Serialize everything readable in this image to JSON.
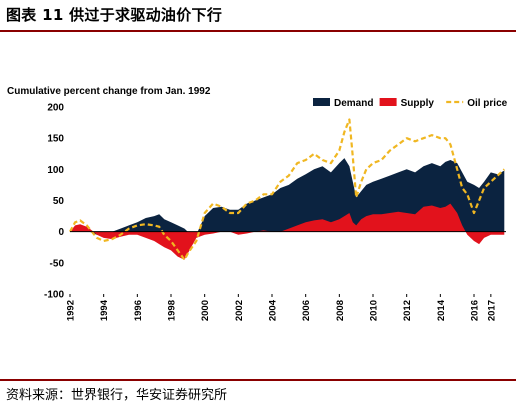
{
  "figure": {
    "title": "图表 11 供过于求驱动油价下行",
    "source": "资料来源：世界银行，华安证券研究所"
  },
  "colors": {
    "demand": "#0b2340",
    "supply": "#e2121c",
    "oil_price": "#f0b722",
    "rule": "#8a0000"
  },
  "chart_data": {
    "type": "area",
    "title": "Cumulative percent change from Jan. 1992",
    "xlabel": "",
    "ylabel": "",
    "xlim": [
      1992,
      2017.9
    ],
    "ylim": [
      -100,
      200
    ],
    "y_ticks": [
      -100,
      -50,
      0,
      50,
      100,
      150,
      200
    ],
    "x_ticks": [
      "1992",
      "1994",
      "1996",
      "1998",
      "2000",
      "2002",
      "2004",
      "2006",
      "2008",
      "2010",
      "2012",
      "2014",
      "2016",
      "2017"
    ],
    "grid": false,
    "legend_position": "top-right",
    "series": [
      {
        "name": "Demand",
        "kind": "area",
        "x": [
          1992.0,
          1992.3,
          1992.6,
          1993.0,
          1993.3,
          1993.6,
          1994.0,
          1994.5,
          1995.0,
          1995.5,
          1996.0,
          1996.5,
          1997.0,
          1997.3,
          1997.6,
          1998.0,
          1998.4,
          1998.8,
          1999.0,
          1999.5,
          2000.0,
          2000.5,
          2001.0,
          2001.5,
          2002.0,
          2002.5,
          2003.0,
          2003.5,
          2004.0,
          2004.5,
          2005.0,
          2005.5,
          2006.0,
          2006.5,
          2007.0,
          2007.5,
          2008.0,
          2008.3,
          2008.6,
          2008.8,
          2009.0,
          2009.3,
          2009.6,
          2010.0,
          2010.5,
          2011.0,
          2011.5,
          2012.0,
          2012.5,
          2013.0,
          2013.5,
          2014.0,
          2014.3,
          2014.6,
          2015.0,
          2015.3,
          2015.6,
          2016.0,
          2016.3,
          2016.6,
          2017.0,
          2017.4,
          2017.8
        ],
        "values": [
          0,
          5,
          8,
          3,
          -2,
          -5,
          -5,
          0,
          5,
          10,
          15,
          22,
          25,
          28,
          20,
          15,
          10,
          5,
          0,
          -5,
          25,
          38,
          40,
          35,
          35,
          45,
          50,
          55,
          60,
          70,
          75,
          85,
          92,
          100,
          105,
          95,
          110,
          118,
          105,
          80,
          55,
          65,
          75,
          80,
          85,
          90,
          95,
          100,
          95,
          105,
          110,
          105,
          112,
          115,
          110,
          95,
          80,
          75,
          70,
          80,
          95,
          92,
          98
        ]
      },
      {
        "name": "Supply",
        "kind": "area",
        "x": [
          1992.0,
          1992.3,
          1992.6,
          1993.0,
          1993.3,
          1993.6,
          1994.0,
          1994.5,
          1995.0,
          1995.5,
          1996.0,
          1996.5,
          1997.0,
          1997.3,
          1997.6,
          1998.0,
          1998.4,
          1998.8,
          1999.0,
          1999.5,
          2000.0,
          2000.5,
          2001.0,
          2001.5,
          2002.0,
          2002.5,
          2003.0,
          2003.5,
          2004.0,
          2004.5,
          2005.0,
          2005.5,
          2006.0,
          2006.5,
          2007.0,
          2007.5,
          2008.0,
          2008.3,
          2008.6,
          2008.8,
          2009.0,
          2009.3,
          2009.6,
          2010.0,
          2010.5,
          2011.0,
          2011.5,
          2012.0,
          2012.5,
          2013.0,
          2013.5,
          2014.0,
          2014.3,
          2014.6,
          2015.0,
          2015.3,
          2015.6,
          2016.0,
          2016.3,
          2016.6,
          2017.0,
          2017.4,
          2017.8
        ],
        "values": [
          0,
          10,
          12,
          8,
          2,
          -5,
          -10,
          -12,
          -8,
          -5,
          -5,
          -10,
          -15,
          -20,
          -25,
          -30,
          -40,
          -45,
          -35,
          -10,
          -5,
          -3,
          0,
          0,
          -5,
          -3,
          0,
          2,
          0,
          0,
          5,
          10,
          15,
          18,
          20,
          15,
          20,
          25,
          30,
          15,
          10,
          20,
          25,
          28,
          28,
          30,
          32,
          30,
          28,
          40,
          42,
          38,
          40,
          45,
          30,
          10,
          -5,
          -15,
          -20,
          -10,
          -5,
          -5,
          -5
        ]
      },
      {
        "name": "Oil price",
        "kind": "line",
        "style": "dashed",
        "x": [
          1992.0,
          1992.3,
          1992.6,
          1993.0,
          1993.3,
          1993.6,
          1994.0,
          1994.5,
          1995.0,
          1995.5,
          1996.0,
          1996.5,
          1997.0,
          1997.3,
          1997.6,
          1998.0,
          1998.4,
          1998.8,
          1999.0,
          1999.5,
          2000.0,
          2000.5,
          2001.0,
          2001.5,
          2002.0,
          2002.5,
          2003.0,
          2003.5,
          2004.0,
          2004.5,
          2005.0,
          2005.5,
          2006.0,
          2006.5,
          2007.0,
          2007.5,
          2008.0,
          2008.3,
          2008.6,
          2008.8,
          2009.0,
          2009.3,
          2009.6,
          2010.0,
          2010.5,
          2011.0,
          2011.5,
          2012.0,
          2012.5,
          2013.0,
          2013.5,
          2014.0,
          2014.3,
          2014.6,
          2015.0,
          2015.3,
          2015.6,
          2016.0,
          2016.3,
          2016.6,
          2017.0,
          2017.4,
          2017.8
        ],
        "values": [
          0,
          15,
          18,
          10,
          0,
          -10,
          -15,
          -12,
          -5,
          5,
          10,
          12,
          10,
          8,
          -5,
          -15,
          -30,
          -45,
          -35,
          -15,
          30,
          45,
          40,
          30,
          30,
          45,
          50,
          60,
          60,
          80,
          90,
          110,
          115,
          125,
          115,
          110,
          130,
          160,
          180,
          120,
          55,
          80,
          100,
          110,
          115,
          130,
          140,
          150,
          145,
          150,
          155,
          150,
          150,
          140,
          100,
          70,
          60,
          30,
          50,
          70,
          80,
          90,
          100
        ]
      }
    ]
  }
}
